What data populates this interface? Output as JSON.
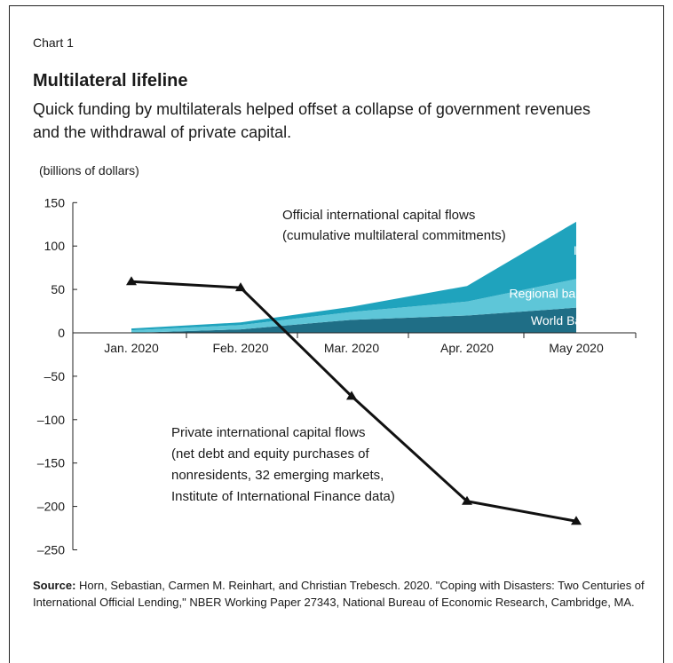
{
  "header": {
    "chart_number": "Chart 1",
    "title": "Multilateral lifeline",
    "subtitle": "Quick funding by multilaterals helped offset a collapse of government revenues and the withdrawal of private capital.",
    "unit": "(billions of dollars)"
  },
  "source": {
    "label": "Source:",
    "text": "Horn, Sebastian, Carmen M. Reinhart, and Christian Trebesch. 2020. \"Coping with Disasters: Two Centuries of International Official Lending,\" NBER Working Paper 27343, National Bureau of Economic Research, Cambridge, MA."
  },
  "chart_data": {
    "type": "area",
    "categories": [
      "Jan. 2020",
      "Feb. 2020",
      "Mar. 2020",
      "Apr. 2020",
      "May 2020"
    ],
    "ylim": [
      -250,
      150
    ],
    "yticks": [
      150,
      100,
      50,
      0,
      -50,
      -100,
      -150,
      -200,
      -250
    ],
    "ytick_labels": [
      "150",
      "100",
      "50",
      "0",
      "–50",
      "–100",
      "–150",
      "–200",
      "–250"
    ],
    "stacked_series": [
      {
        "name": "World Bank",
        "values": [
          0,
          4,
          15,
          20,
          29
        ],
        "color": "#1f6e86"
      },
      {
        "name": "Regional banks",
        "values": [
          3,
          5,
          9,
          16,
          33
        ],
        "color": "#5ec6d8"
      },
      {
        "name": "IMF",
        "values": [
          2,
          3,
          6,
          18,
          66
        ],
        "color": "#1fa3bd"
      }
    ],
    "line_series": {
      "name": "",
      "values": [
        59,
        52,
        -73,
        -194,
        -217
      ],
      "color": "#111111"
    },
    "annotations": {
      "official_line1": "Official international capital flows",
      "official_line2": "(cumulative multilateral commitments)",
      "private_line1": "Private international capital flows",
      "private_line2": "(net debt and equity purchases of",
      "private_line3": "nonresidents, 32 emerging markets,",
      "private_line4": "Institute of International Finance data)"
    }
  }
}
